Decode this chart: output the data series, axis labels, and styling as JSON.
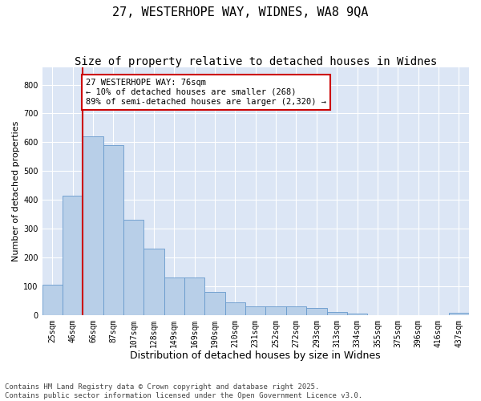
{
  "title1": "27, WESTERHOPE WAY, WIDNES, WA8 9QA",
  "title2": "Size of property relative to detached houses in Widnes",
  "xlabel": "Distribution of detached houses by size in Widnes",
  "ylabel": "Number of detached properties",
  "bar_labels": [
    "25sqm",
    "46sqm",
    "66sqm",
    "87sqm",
    "107sqm",
    "128sqm",
    "149sqm",
    "169sqm",
    "190sqm",
    "210sqm",
    "231sqm",
    "252sqm",
    "272sqm",
    "293sqm",
    "313sqm",
    "334sqm",
    "355sqm",
    "375sqm",
    "396sqm",
    "416sqm",
    "437sqm"
  ],
  "bar_values": [
    105,
    415,
    620,
    590,
    330,
    230,
    130,
    130,
    80,
    45,
    30,
    30,
    30,
    25,
    10,
    5,
    0,
    0,
    0,
    0,
    8
  ],
  "bar_color": "#b8cfe8",
  "bar_edge_color": "#6699cc",
  "property_line_x": 2.0,
  "annotation_text": "27 WESTERHOPE WAY: 76sqm\n← 10% of detached houses are smaller (268)\n89% of semi-detached houses are larger (2,320) →",
  "annotation_box_color": "#ffffff",
  "annotation_box_edge": "#cc0000",
  "red_line_color": "#cc0000",
  "ylim": [
    0,
    860
  ],
  "yticks": [
    0,
    100,
    200,
    300,
    400,
    500,
    600,
    700,
    800
  ],
  "background_color": "#dce6f5",
  "footer_line1": "Contains HM Land Registry data © Crown copyright and database right 2025.",
  "footer_line2": "Contains public sector information licensed under the Open Government Licence v3.0.",
  "title1_fontsize": 11,
  "title2_fontsize": 10,
  "xlabel_fontsize": 9,
  "ylabel_fontsize": 8,
  "tick_fontsize": 7,
  "annotation_fontsize": 7.5,
  "footer_fontsize": 6.5
}
